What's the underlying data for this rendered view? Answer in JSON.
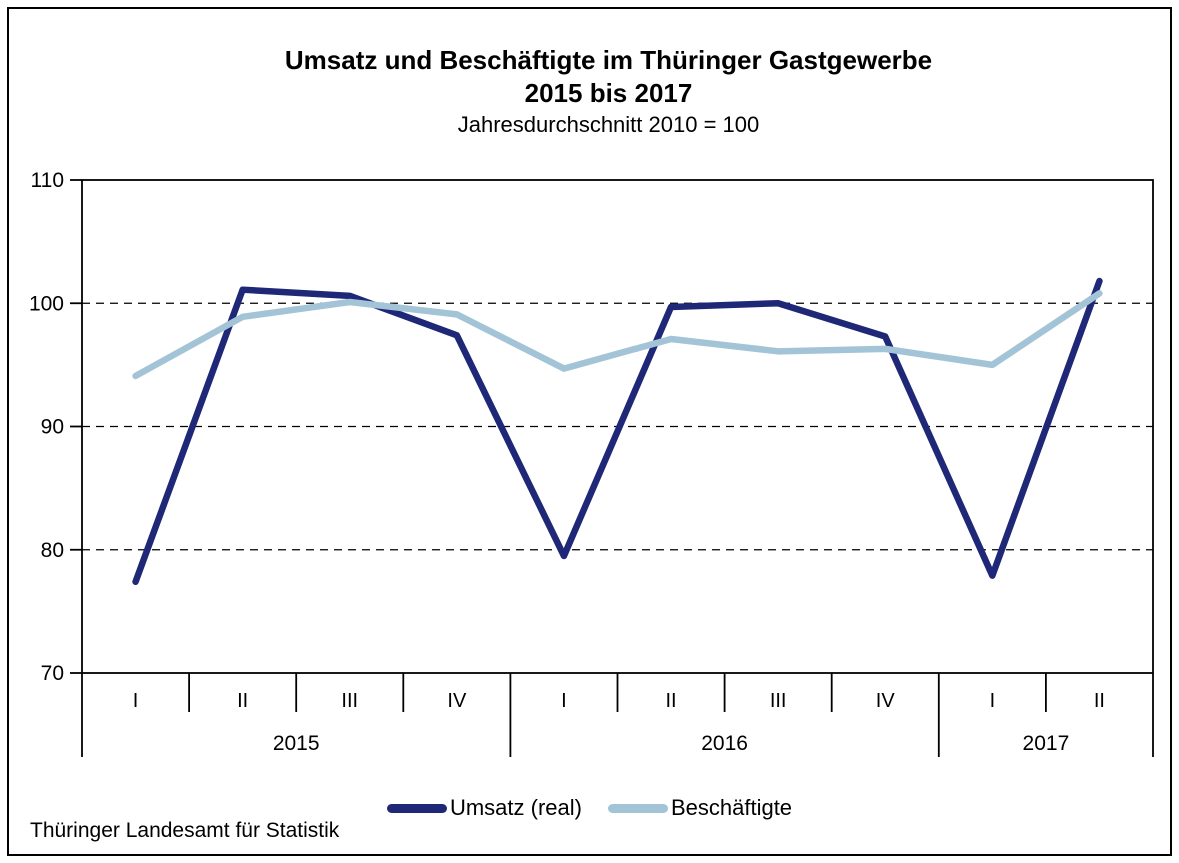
{
  "title": {
    "line1": "Umsatz und Beschäftigte im Thüringer Gastgewerbe",
    "line2": "2015 bis 2017",
    "subtitle": "Jahresdurchschnitt 2010 = 100"
  },
  "source": "Thüringer Landesamt für Statistik",
  "chart_data": {
    "type": "line",
    "categories": [
      "I",
      "II",
      "III",
      "IV",
      "I",
      "II",
      "III",
      "IV",
      "I",
      "II"
    ],
    "year_groups": [
      {
        "label": "2015",
        "span": 4
      },
      {
        "label": "2016",
        "span": 4
      },
      {
        "label": "2017",
        "span": 2
      }
    ],
    "series": [
      {
        "name": "Umsatz (real)",
        "color": "#1e2877",
        "values": [
          77.4,
          101.1,
          100.6,
          97.4,
          79.5,
          99.7,
          100.0,
          97.3,
          77.9,
          101.8
        ]
      },
      {
        "name": "Beschäftigte",
        "color": "#a3c4d6",
        "values": [
          94.1,
          98.9,
          100.1,
          99.1,
          94.7,
          97.1,
          96.1,
          96.3,
          95.0,
          100.8
        ]
      }
    ],
    "ylim": [
      70,
      110
    ],
    "y_ticks": [
      110,
      100,
      90,
      80,
      70
    ],
    "gridlines": [
      100,
      90,
      80
    ],
    "grid": "dashed horizontal",
    "legend_position": "bottom",
    "xlabel": "",
    "ylabel": ""
  }
}
